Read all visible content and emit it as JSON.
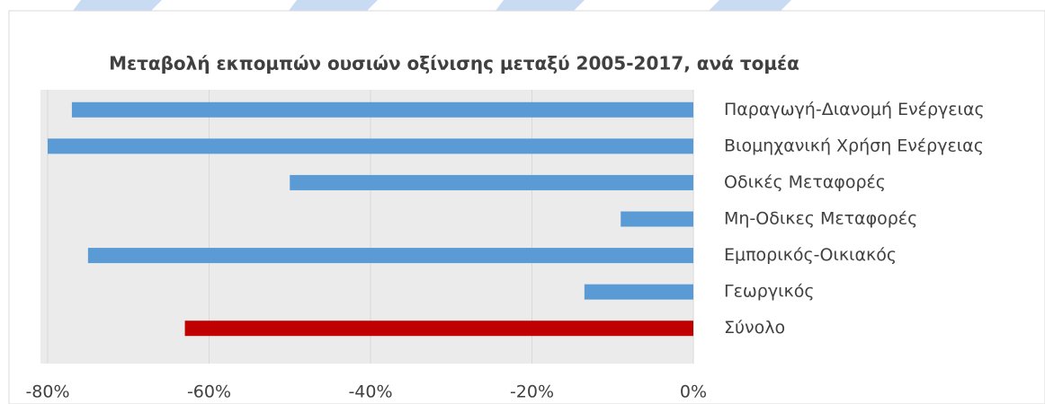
{
  "chart_data": {
    "type": "bar",
    "orientation": "horizontal",
    "title": "Μεταβολή εκπομπών ουσιών οξίνισης μεταξύ 2005-2017, ανά τομέα",
    "categories": [
      "Παραγωγή-Διανομή Ενέργειας",
      "Βιομηχανική Χρήση Ενέργειας",
      "Οδικές Μεταφορές",
      "Μη-Οδικες Μεταφορές",
      "Εμπορικός-Οικιακός",
      "Γεωργικός",
      "Σύνολο"
    ],
    "values": [
      -77,
      -80,
      -50,
      -9,
      -75,
      -13.5,
      -63
    ],
    "colors": [
      "#5b9bd5",
      "#5b9bd5",
      "#5b9bd5",
      "#5b9bd5",
      "#5b9bd5",
      "#5b9bd5",
      "#c00000"
    ],
    "xlim": [
      -80,
      0
    ],
    "xticks": [
      {
        "value": -80,
        "label": "-80%"
      },
      {
        "value": -60,
        "label": "-60%"
      },
      {
        "value": -40,
        "label": "-40%"
      },
      {
        "value": -20,
        "label": "-20%"
      },
      {
        "value": 0,
        "label": "0%"
      }
    ],
    "grid": true
  }
}
